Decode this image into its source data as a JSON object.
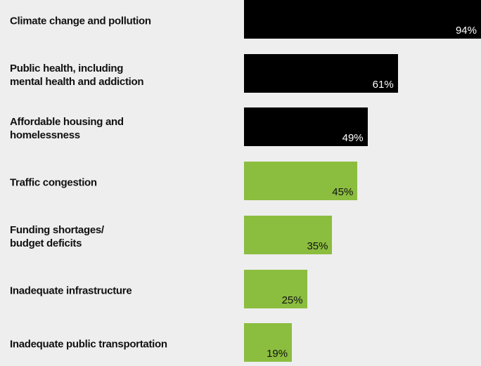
{
  "chart_data": {
    "type": "bar",
    "categories": [
      "Climate change and pollution",
      "Public health, including\nmental health and addiction",
      "Affordable housing and\nhomelessness",
      "Traffic congestion",
      "Funding shortages/\nbudget deficits",
      "Inadequate infrastructure",
      "Inadequate public transportation"
    ],
    "values": [
      94,
      61,
      49,
      45,
      35,
      25,
      19
    ],
    "value_labels": [
      "94%",
      "61%",
      "49%",
      "45%",
      "35%",
      "25%",
      "19%"
    ],
    "colors": [
      "#000000",
      "#000000",
      "#000000",
      "#8bbd3f",
      "#8bbd3f",
      "#8bbd3f",
      "#8bbd3f"
    ]
  }
}
